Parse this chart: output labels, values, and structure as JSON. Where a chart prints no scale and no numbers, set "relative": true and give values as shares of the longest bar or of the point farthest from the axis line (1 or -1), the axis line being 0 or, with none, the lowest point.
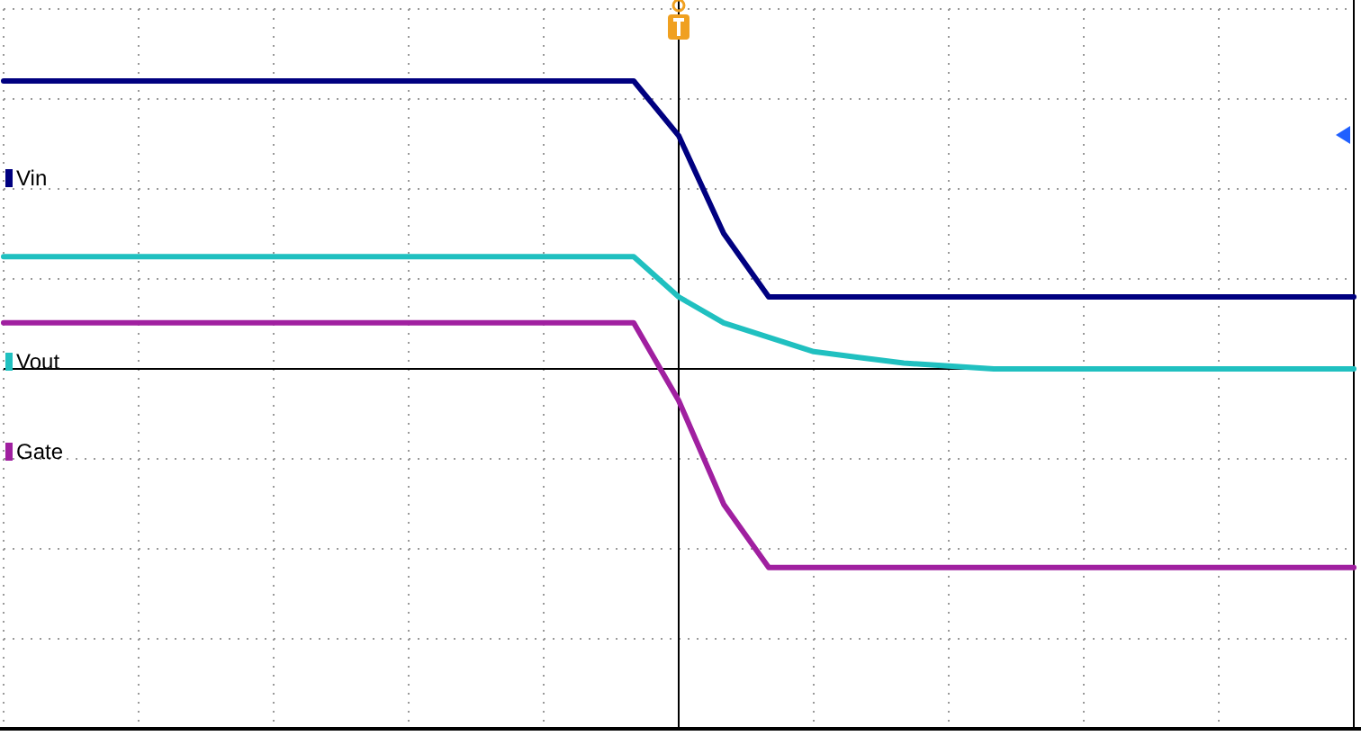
{
  "chart_data": {
    "type": "line",
    "relative": true,
    "grid": true,
    "legend": "left",
    "marker": "none",
    "line_style": "solid",
    "categories": [
      null,
      null,
      null,
      null,
      null,
      null,
      null,
      null,
      null,
      null,
      null,
      null,
      null,
      null,
      null,
      null,
      null,
      null,
      null,
      null,
      null,
      null,
      null,
      null,
      null,
      null,
      null,
      null,
      null,
      null,
      null
    ],
    "series": [
      {
        "name": "Vin",
        "color": "#000080",
        "values": [
          1,
          1,
          1,
          1,
          1,
          1,
          1,
          1,
          1,
          1,
          1,
          1,
          1,
          1,
          1,
          0.81,
          0.47,
          0.25,
          0.25,
          0.25,
          0.25,
          0.25,
          0.25,
          0.25,
          0.25,
          0.25,
          0.25,
          0.25,
          0.25,
          0.25,
          0.25
        ]
      },
      {
        "name": "Vout",
        "color": "#20c0c0",
        "values": [
          0.39,
          0.39,
          0.39,
          0.39,
          0.39,
          0.39,
          0.39,
          0.39,
          0.39,
          0.39,
          0.39,
          0.39,
          0.39,
          0.39,
          0.39,
          0.25,
          0.16,
          0.11,
          0.06,
          0.04,
          0.02,
          0.01,
          0,
          0,
          0,
          0,
          0,
          0,
          0,
          0,
          0
        ]
      },
      {
        "name": "Gate",
        "color": "#a020a0",
        "values": [
          0.16,
          0.16,
          0.16,
          0.16,
          0.16,
          0.16,
          0.16,
          0.16,
          0.16,
          0.16,
          0.16,
          0.16,
          0.16,
          0.16,
          0.16,
          -0.11,
          -0.47,
          -0.69,
          -0.69,
          -0.69,
          -0.69,
          -0.69,
          -0.69,
          -0.69,
          -0.69,
          -0.69,
          -0.69,
          -0.69,
          -0.69,
          -0.69,
          -0.69
        ]
      }
    ]
  }
}
